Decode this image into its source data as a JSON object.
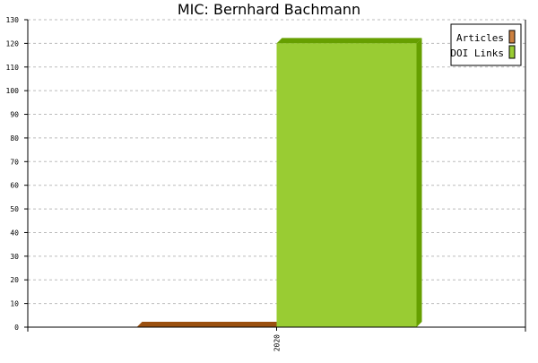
{
  "chart_data": {
    "type": "bar",
    "title": "MIC: Bernhard Bachmann",
    "categories": [
      "2020"
    ],
    "series": [
      {
        "name": "Articles",
        "values": [
          0
        ],
        "color": "#cc8040",
        "top_color": "#9a5010"
      },
      {
        "name": "DOI Links",
        "values": [
          120
        ],
        "color": "#99cc33",
        "top_color": "#669f00"
      }
    ],
    "ylim": [
      0,
      130
    ],
    "yticks": [
      0,
      10,
      20,
      30,
      40,
      50,
      60,
      70,
      80,
      90,
      100,
      110,
      120,
      130
    ],
    "grid": true,
    "legend": "top-right",
    "xlabel": "",
    "ylabel": ""
  }
}
